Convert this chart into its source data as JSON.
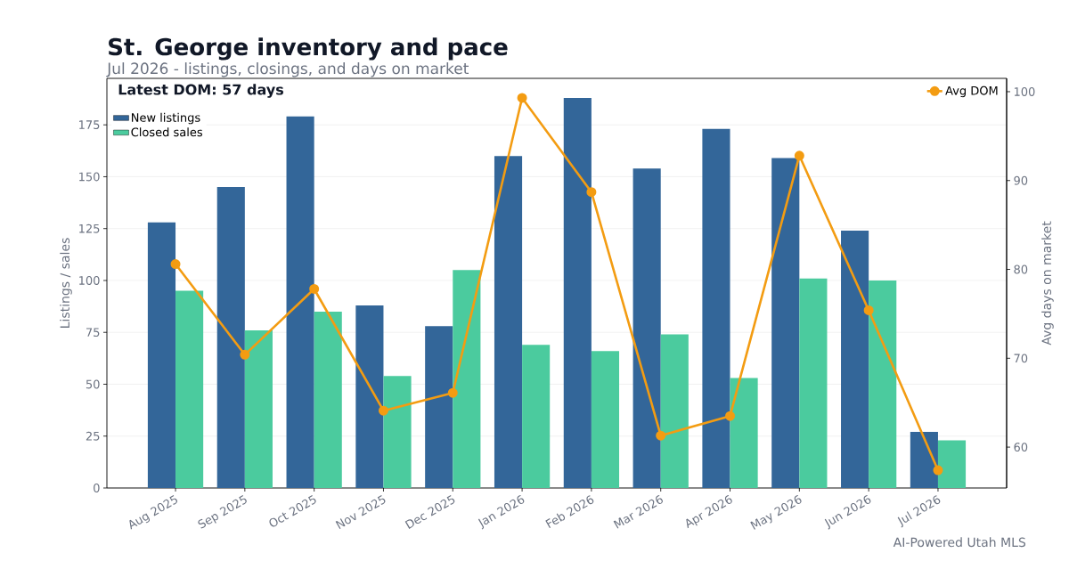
{
  "chart_data": {
    "type": "bar",
    "title": "St. George inventory and pace",
    "subtitle": "Jul 2026 - listings, closings, and days on market",
    "ylabel": "Listings / sales",
    "y2label": "Avg days on market",
    "categories": [
      "Aug 2025",
      "Sep 2025",
      "Oct 2025",
      "Nov 2025",
      "Dec 2025",
      "Jan 2026",
      "Feb 2026",
      "Mar 2026",
      "Apr 2026",
      "May 2026",
      "Jun 2026",
      "Jul 2026"
    ],
    "series": [
      {
        "name": "New listings",
        "color": "#336699",
        "values": [
          128,
          145,
          179,
          88,
          78,
          160,
          188,
          154,
          173,
          159,
          124,
          27
        ]
      },
      {
        "name": "Closed sales",
        "color": "#4bcb9e",
        "values": [
          95,
          76,
          85,
          54,
          105,
          69,
          66,
          74,
          53,
          101,
          100,
          23
        ]
      },
      {
        "name": "Avg DOM",
        "type": "line",
        "axis": "y2",
        "color": "#f39c12",
        "marker": "circle",
        "line_style": "solid",
        "values": [
          80.6,
          70.4,
          77.8,
          64.1,
          66.1,
          99.3,
          88.7,
          61.3,
          63.5,
          92.8,
          75.4,
          57.4
        ]
      }
    ],
    "ylim": [
      0,
      197.4
    ],
    "yticks": [
      0,
      25,
      50,
      75,
      100,
      125,
      150,
      175
    ],
    "y2lim": [
      55.4,
      101.5
    ],
    "y2ticks": [
      60,
      70,
      80,
      90,
      100
    ],
    "grid": "y",
    "legend": "top left",
    "annotations": [
      "Latest DOM: 57 days",
      "AI-Powered Utah MLS"
    ]
  }
}
